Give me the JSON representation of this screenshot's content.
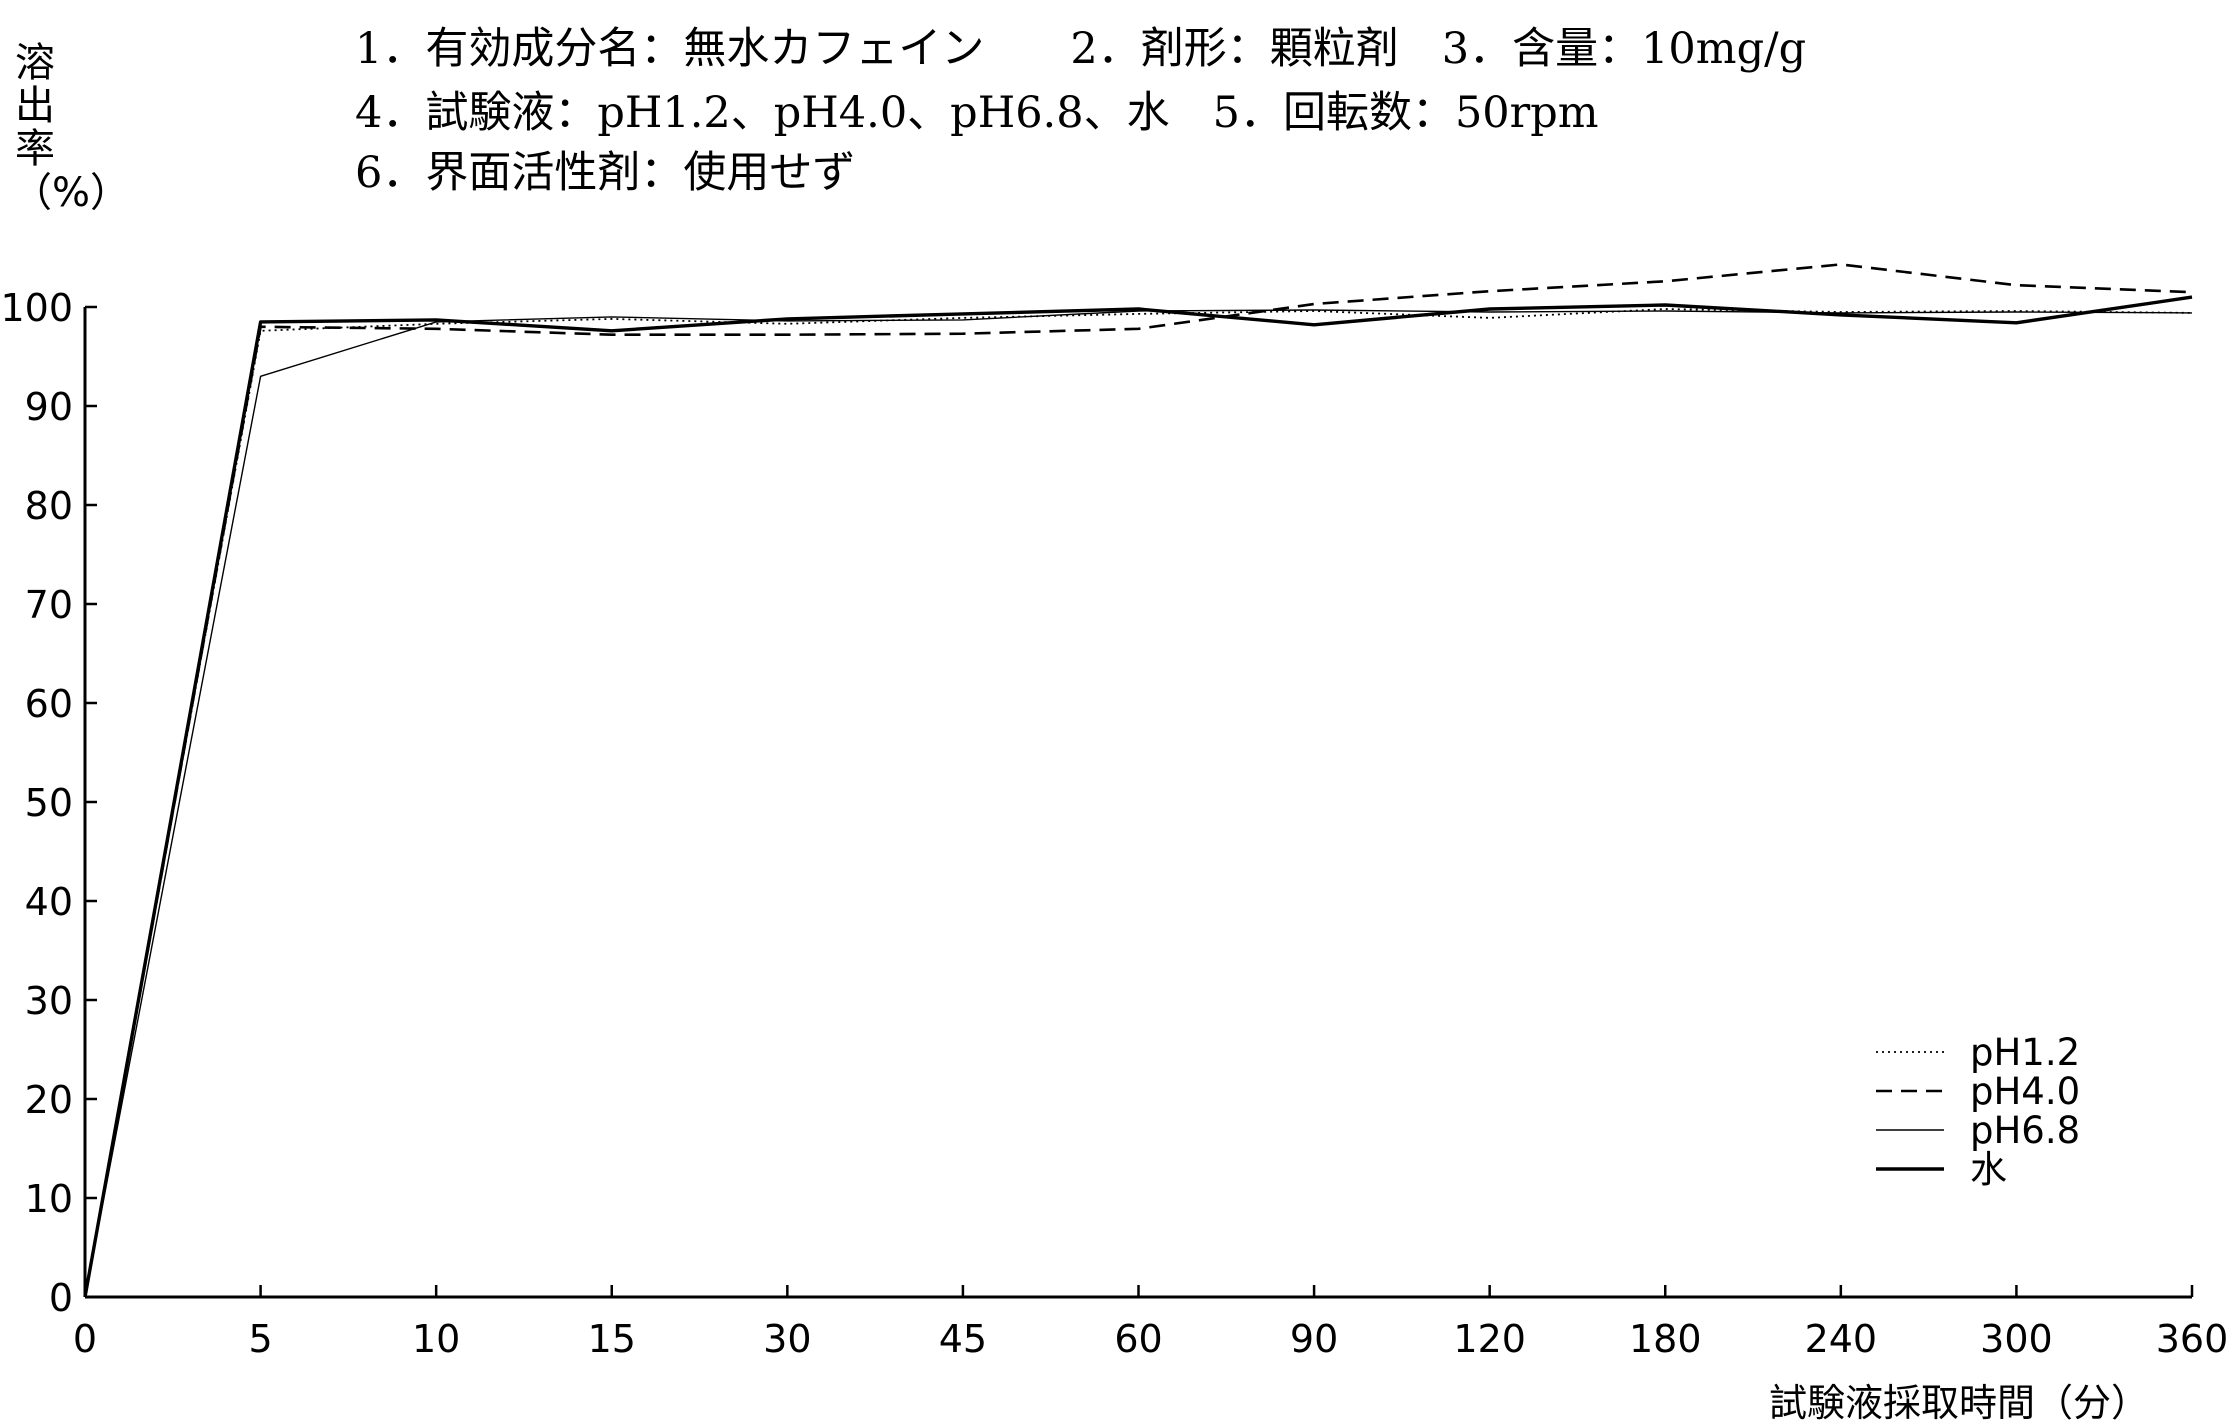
{
  "chart_data": {
    "type": "line",
    "header": [
      "1．有効成分名：無水カフェイン　　2．剤形：顆粒剤　3．含量：10mg/g",
      "4．試験液：pH1.2、pH4.0、pH6.8、水　5．回転数：50rpm",
      "6．界面活性剤：使用せず"
    ],
    "ylabel": "溶出率（%）",
    "xlabel": "試験液採取時間（分）",
    "ylim": [
      0,
      100
    ],
    "categories": [
      "0",
      "5",
      "10",
      "15",
      "30",
      "45",
      "60",
      "90",
      "120",
      "180",
      "240",
      "300",
      "360"
    ],
    "yticks": [
      "0",
      "10",
      "20",
      "30",
      "40",
      "50",
      "60",
      "70",
      "80",
      "90",
      "100"
    ],
    "grid": false,
    "legend_position": "bottom-right",
    "series": [
      {
        "name": "pH1.2",
        "style": "dotted",
        "values": [
          0,
          97.6,
          98.3,
          98.8,
          98.3,
          98.9,
          99.3,
          99.6,
          98.9,
          99.8,
          99.5,
          99.6,
          99.4
        ]
      },
      {
        "name": "pH4.0",
        "style": "dashed",
        "values": [
          0,
          98.0,
          97.8,
          97.2,
          97.2,
          97.3,
          97.8,
          100.3,
          101.6,
          102.6,
          104.3,
          102.2,
          101.5
        ]
      },
      {
        "name": "pH6.8",
        "style": "thin",
        "values": [
          0,
          93.0,
          98.5,
          99.0,
          98.6,
          98.7,
          99.6,
          99.7,
          99.5,
          99.6,
          99.4,
          99.5,
          99.4
        ]
      },
      {
        "name": "水",
        "style": "thick",
        "values": [
          0,
          98.5,
          98.7,
          97.6,
          98.8,
          99.3,
          99.8,
          98.2,
          99.8,
          100.2,
          99.2,
          98.4,
          101.0
        ]
      }
    ]
  }
}
